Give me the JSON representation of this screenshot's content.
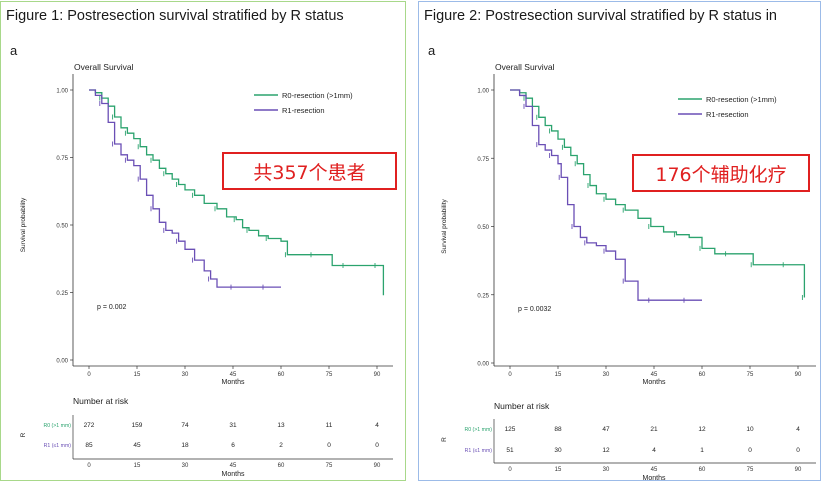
{
  "panels": [
    {
      "title": "Figure 1: Postresection survival stratified by R status",
      "sub_letter": "a",
      "callout": "共357个患者",
      "chart_data": {
        "type": "line",
        "title": "Overall Survival",
        "xlabel": "Months",
        "ylabel": "Survival probability",
        "xlim": [
          0,
          92
        ],
        "ylim": [
          0,
          1
        ],
        "xticks": [
          "0",
          "15",
          "30",
          "45",
          "60",
          "75",
          "90"
        ],
        "yticks": [
          "0.00",
          "0.25",
          "0.50",
          "0.75",
          "1.00"
        ],
        "pvalue": "p = 0.002",
        "series": [
          {
            "name": "R0-resection (>1mm)",
            "color": "#2ba36e",
            "x": [
              0,
              2,
              4,
              6,
              8,
              10,
              12,
              14,
              16,
              18,
              20,
              22,
              24,
              26,
              28,
              30,
              33,
              36,
              40,
              43,
              46,
              48,
              50,
              53,
              56,
              60,
              62,
              66,
              70,
              76,
              80,
              84,
              90,
              92
            ],
            "y": [
              1.0,
              0.99,
              0.97,
              0.94,
              0.9,
              0.86,
              0.84,
              0.82,
              0.79,
              0.76,
              0.74,
              0.71,
              0.69,
              0.67,
              0.65,
              0.63,
              0.61,
              0.58,
              0.56,
              0.53,
              0.52,
              0.49,
              0.48,
              0.46,
              0.45,
              0.44,
              0.39,
              0.39,
              0.39,
              0.35,
              0.35,
              0.35,
              0.35,
              0.24
            ]
          },
          {
            "name": "R1-resection",
            "color": "#6a4fb5",
            "x": [
              0,
              2,
              4,
              6,
              8,
              10,
              12,
              14,
              16,
              18,
              20,
              22,
              24,
              26,
              28,
              30,
              33,
              36,
              38,
              40,
              45,
              50,
              55,
              60
            ],
            "y": [
              1.0,
              0.98,
              0.95,
              0.88,
              0.8,
              0.76,
              0.74,
              0.72,
              0.67,
              0.61,
              0.56,
              0.51,
              0.48,
              0.47,
              0.44,
              0.41,
              0.37,
              0.33,
              0.3,
              0.27,
              0.27,
              0.27,
              0.27,
              0.27
            ]
          }
        ],
        "risk_table": {
          "title": "Number at risk",
          "ylabel": "R",
          "rows": [
            {
              "label": "R0 (>1 mm)",
              "values": [
                "272",
                "159",
                "74",
                "31",
                "13",
                "11",
                "4"
              ]
            },
            {
              "label": "R1 (≤1 mm)",
              "values": [
                "85",
                "45",
                "18",
                "6",
                "2",
                "0",
                "0"
              ]
            }
          ]
        }
      }
    },
    {
      "title": "Figure 2: Postresection survival stratified by R status in",
      "sub_letter": "a",
      "callout": "176个辅助化疗",
      "chart_data": {
        "type": "line",
        "title": "Overall Survival",
        "xlabel": "Months",
        "ylabel": "Survival probability",
        "xlim": [
          0,
          92
        ],
        "ylim": [
          0,
          1
        ],
        "xticks": [
          "0",
          "15",
          "30",
          "45",
          "60",
          "75",
          "90"
        ],
        "yticks": [
          "0.00",
          "0.25",
          "0.50",
          "0.75",
          "1.00"
        ],
        "pvalue": "p = 0.0032",
        "series": [
          {
            "name": "R0-resection (>1mm)",
            "color": "#2ba36e",
            "x": [
              0,
              3,
              5,
              7,
              9,
              11,
              13,
              15,
              17,
              19,
              21,
              23,
              25,
              27,
              30,
              33,
              36,
              40,
              44,
              48,
              52,
              56,
              60,
              64,
              68,
              72,
              76,
              80,
              86,
              90,
              92
            ],
            "y": [
              1.0,
              0.99,
              0.97,
              0.94,
              0.9,
              0.87,
              0.85,
              0.82,
              0.79,
              0.76,
              0.73,
              0.69,
              0.65,
              0.62,
              0.6,
              0.58,
              0.56,
              0.53,
              0.5,
              0.48,
              0.47,
              0.46,
              0.42,
              0.4,
              0.4,
              0.4,
              0.36,
              0.36,
              0.36,
              0.36,
              0.24
            ]
          },
          {
            "name": "R1-resection",
            "color": "#6a4fb5",
            "x": [
              0,
              3,
              5,
              7,
              9,
              11,
              13,
              15,
              16,
              18,
              20,
              22,
              24,
              27,
              30,
              33,
              36,
              40,
              44,
              50,
              55,
              60
            ],
            "y": [
              1.0,
              0.98,
              0.94,
              0.87,
              0.8,
              0.78,
              0.76,
              0.73,
              0.68,
              0.58,
              0.5,
              0.46,
              0.44,
              0.43,
              0.41,
              0.38,
              0.3,
              0.23,
              0.23,
              0.23,
              0.23,
              0.23
            ]
          }
        ],
        "risk_table": {
          "title": "Number at risk",
          "ylabel": "R",
          "rows": [
            {
              "label": "R0 (>1 mm)",
              "values": [
                "125",
                "88",
                "47",
                "21",
                "12",
                "10",
                "4"
              ]
            },
            {
              "label": "R1 (≤1 mm)",
              "values": [
                "51",
                "30",
                "12",
                "4",
                "1",
                "0",
                "0"
              ]
            }
          ]
        }
      }
    }
  ]
}
